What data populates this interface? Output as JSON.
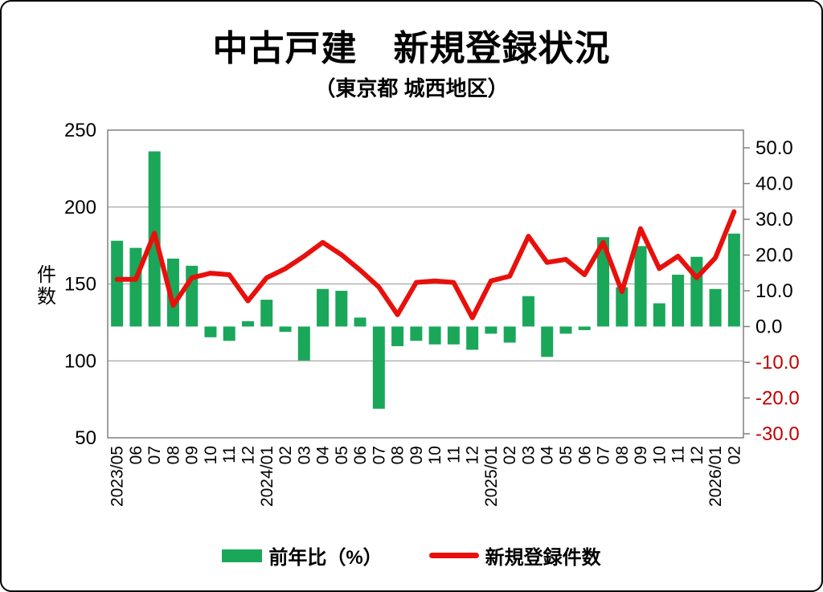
{
  "title": "中古戸建　新規登録状況",
  "subtitle": "（東京都 城西地区）",
  "colors": {
    "bar_green": "#1aa75a",
    "line_red": "#e8100c",
    "negative_tick_red": "#c00000",
    "grid_gray": "#a6a6a6",
    "plot_border_gray": "#808080",
    "text_black": "#000000"
  },
  "chart_data": {
    "type": "combo",
    "title": "中古戸建　新規登録状況",
    "subtitle": "（東京都 城西地区）",
    "categories": [
      "2023/05",
      "06",
      "07",
      "08",
      "09",
      "10",
      "11",
      "12",
      "2024/01",
      "02",
      "03",
      "04",
      "05",
      "06",
      "07",
      "08",
      "09",
      "10",
      "11",
      "12",
      "2025/01",
      "02",
      "03",
      "04",
      "05",
      "06",
      "07",
      "08",
      "09",
      "10",
      "11",
      "12",
      "2026/01",
      "02"
    ],
    "series": [
      {
        "name": "前年比（%）",
        "type": "bar",
        "axis": "right",
        "color": "#1aa75a",
        "values": [
          24,
          22,
          49,
          19,
          17,
          -3,
          -4,
          1.5,
          7.5,
          -1.5,
          -9.5,
          10.5,
          10,
          2.5,
          -23,
          -5.5,
          -4,
          -5,
          -5,
          -6.5,
          -2,
          -4.5,
          8.5,
          -8.5,
          -2,
          -1,
          25,
          11,
          22.5,
          6.5,
          14.5,
          19.5,
          10.5,
          26
        ]
      },
      {
        "name": "新規登録件数",
        "type": "line",
        "axis": "left",
        "color": "#e8100c",
        "values": [
          153,
          153,
          183,
          136,
          154,
          157,
          156,
          139,
          154,
          160,
          168,
          177,
          169,
          159,
          148,
          130,
          151,
          152,
          151,
          128,
          152,
          155,
          181,
          164,
          166,
          156,
          177,
          145,
          186,
          160,
          168,
          154,
          167,
          197
        ]
      }
    ],
    "left_axis": {
      "label": "件数",
      "min": 50,
      "max": 250,
      "ticks": [
        250,
        200,
        150,
        100,
        50
      ]
    },
    "right_axis": {
      "min": -30,
      "max": 50,
      "ticks": [
        50,
        40,
        30,
        20,
        10,
        0,
        -10,
        -20,
        -30
      ],
      "tick_labels": [
        "50.0",
        "40.0",
        "30.0",
        "20.0",
        "10.0",
        "0.0",
        "-10.0",
        "-20.0",
        "-30.0"
      ]
    },
    "grid": true,
    "legend_position": "bottom"
  },
  "legend": {
    "bar_label": "前年比（%）",
    "line_label": "新規登録件数"
  }
}
